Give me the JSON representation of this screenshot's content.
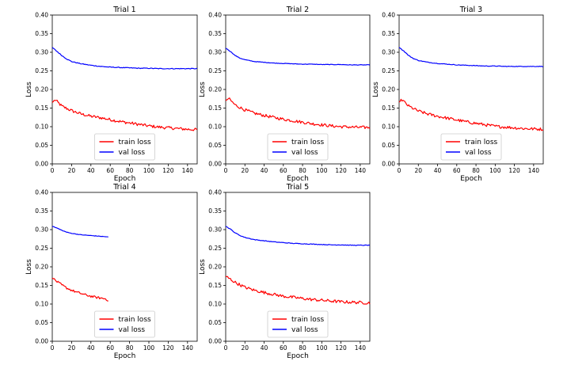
{
  "chart_data": [
    {
      "type": "line",
      "title": "Trial 1",
      "xlabel": "Epoch",
      "ylabel": "Loss",
      "xlim": [
        0,
        150
      ],
      "ylim": [
        0,
        0.4
      ],
      "xticks": [
        0,
        20,
        40,
        60,
        80,
        100,
        120,
        140
      ],
      "yticks": [
        "0.00",
        "0.05",
        "0.10",
        "0.15",
        "0.20",
        "0.25",
        "0.30",
        "0.35",
        "0.40"
      ],
      "legend": {
        "placement": "bottom-center",
        "entries": [
          "train loss",
          "val loss"
        ]
      },
      "series": [
        {
          "name": "train loss",
          "color": "#ff0000",
          "noise": 0.004,
          "x": [
            0,
            3,
            10,
            20,
            30,
            40,
            50,
            60,
            70,
            80,
            90,
            100,
            110,
            120,
            130,
            140,
            150
          ],
          "y": [
            0.165,
            0.172,
            0.155,
            0.143,
            0.134,
            0.128,
            0.124,
            0.119,
            0.114,
            0.11,
            0.106,
            0.102,
            0.099,
            0.097,
            0.095,
            0.093,
            0.092
          ]
        },
        {
          "name": "val loss",
          "color": "#0000ff",
          "noise": 0.001,
          "x": [
            0,
            5,
            10,
            15,
            20,
            30,
            40,
            50,
            60,
            70,
            80,
            90,
            100,
            110,
            120,
            130,
            140,
            150
          ],
          "y": [
            0.313,
            0.302,
            0.291,
            0.282,
            0.275,
            0.269,
            0.265,
            0.262,
            0.26,
            0.259,
            0.258,
            0.257,
            0.257,
            0.256,
            0.256,
            0.256,
            0.256,
            0.256
          ]
        }
      ]
    },
    {
      "type": "line",
      "title": "Trial 2",
      "xlabel": "Epoch",
      "ylabel": "Loss",
      "xlim": [
        0,
        150
      ],
      "ylim": [
        0,
        0.4
      ],
      "xticks": [
        0,
        20,
        40,
        60,
        80,
        100,
        120,
        140
      ],
      "yticks": [
        "0.00",
        "0.05",
        "0.10",
        "0.15",
        "0.20",
        "0.25",
        "0.30",
        "0.35",
        "0.40"
      ],
      "legend": {
        "placement": "bottom-center",
        "entries": [
          "train loss",
          "val loss"
        ]
      },
      "series": [
        {
          "name": "train loss",
          "color": "#ff0000",
          "noise": 0.004,
          "x": [
            0,
            3,
            10,
            20,
            30,
            40,
            50,
            60,
            70,
            80,
            90,
            100,
            110,
            120,
            130,
            140,
            150
          ],
          "y": [
            0.17,
            0.176,
            0.158,
            0.145,
            0.136,
            0.13,
            0.125,
            0.12,
            0.116,
            0.112,
            0.108,
            0.105,
            0.102,
            0.1,
            0.099,
            0.098,
            0.098
          ]
        },
        {
          "name": "val loss",
          "color": "#0000ff",
          "noise": 0.0007,
          "x": [
            0,
            5,
            10,
            15,
            20,
            30,
            40,
            50,
            60,
            70,
            80,
            90,
            100,
            110,
            120,
            130,
            140,
            150
          ],
          "y": [
            0.311,
            0.302,
            0.291,
            0.284,
            0.28,
            0.275,
            0.273,
            0.271,
            0.27,
            0.269,
            0.268,
            0.268,
            0.267,
            0.267,
            0.267,
            0.266,
            0.266,
            0.266
          ]
        }
      ]
    },
    {
      "type": "line",
      "title": "Trial 3",
      "xlabel": "Epoch",
      "ylabel": "Loss",
      "xlim": [
        0,
        150
      ],
      "ylim": [
        0,
        0.4
      ],
      "xticks": [
        0,
        20,
        40,
        60,
        80,
        100,
        120,
        140
      ],
      "yticks": [
        "0.00",
        "0.05",
        "0.10",
        "0.15",
        "0.20",
        "0.25",
        "0.30",
        "0.35",
        "0.40"
      ],
      "legend": {
        "placement": "bottom-center",
        "entries": [
          "train loss",
          "val loss"
        ]
      },
      "series": [
        {
          "name": "train loss",
          "color": "#ff0000",
          "noise": 0.004,
          "x": [
            0,
            3,
            10,
            20,
            30,
            40,
            50,
            60,
            70,
            80,
            90,
            100,
            110,
            120,
            130,
            140,
            150
          ],
          "y": [
            0.166,
            0.172,
            0.155,
            0.142,
            0.134,
            0.128,
            0.123,
            0.118,
            0.113,
            0.109,
            0.105,
            0.101,
            0.099,
            0.097,
            0.095,
            0.094,
            0.093
          ]
        },
        {
          "name": "val loss",
          "color": "#0000ff",
          "noise": 0.0008,
          "x": [
            0,
            5,
            10,
            15,
            20,
            30,
            40,
            50,
            60,
            70,
            80,
            90,
            100,
            110,
            120,
            130,
            140,
            150
          ],
          "y": [
            0.313,
            0.303,
            0.291,
            0.283,
            0.278,
            0.273,
            0.27,
            0.268,
            0.266,
            0.265,
            0.264,
            0.263,
            0.263,
            0.262,
            0.262,
            0.262,
            0.262,
            0.262
          ]
        }
      ]
    },
    {
      "type": "line",
      "title": "Trial 4",
      "xlabel": "Epoch",
      "ylabel": "Loss",
      "xlim": [
        0,
        150
      ],
      "ylim": [
        0,
        0.4
      ],
      "xticks": [
        0,
        20,
        40,
        60,
        80,
        100,
        120,
        140
      ],
      "yticks": [
        "0.00",
        "0.05",
        "0.10",
        "0.15",
        "0.20",
        "0.25",
        "0.30",
        "0.35",
        "0.40"
      ],
      "legend": {
        "placement": "bottom-center",
        "entries": [
          "train loss",
          "val loss"
        ]
      },
      "series": [
        {
          "name": "train loss",
          "color": "#ff0000",
          "noise": 0.003,
          "x": [
            0,
            5,
            10,
            15,
            20,
            25,
            30,
            35,
            40,
            45,
            50,
            55,
            58
          ],
          "y": [
            0.17,
            0.16,
            0.151,
            0.143,
            0.137,
            0.132,
            0.128,
            0.124,
            0.121,
            0.118,
            0.116,
            0.114,
            0.11
          ]
        },
        {
          "name": "val loss",
          "color": "#0000ff",
          "noise": 0.0006,
          "x": [
            0,
            5,
            10,
            15,
            20,
            25,
            30,
            35,
            40,
            45,
            50,
            55,
            58
          ],
          "y": [
            0.309,
            0.304,
            0.298,
            0.293,
            0.29,
            0.288,
            0.286,
            0.285,
            0.284,
            0.283,
            0.282,
            0.281,
            0.28
          ]
        }
      ]
    },
    {
      "type": "line",
      "title": "Trial 5",
      "xlabel": "Epoch",
      "ylabel": "Loss",
      "xlim": [
        0,
        150
      ],
      "ylim": [
        0,
        0.4
      ],
      "xticks": [
        0,
        20,
        40,
        60,
        80,
        100,
        120,
        140
      ],
      "yticks": [
        "0.00",
        "0.05",
        "0.10",
        "0.15",
        "0.20",
        "0.25",
        "0.30",
        "0.35",
        "0.40"
      ],
      "legend": {
        "placement": "bottom-center",
        "entries": [
          "train loss",
          "val loss"
        ]
      },
      "series": [
        {
          "name": "train loss",
          "color": "#ff0000",
          "noise": 0.004,
          "x": [
            0,
            10,
            20,
            30,
            40,
            50,
            60,
            70,
            80,
            90,
            100,
            110,
            120,
            130,
            140,
            150
          ],
          "y": [
            0.175,
            0.158,
            0.145,
            0.137,
            0.131,
            0.126,
            0.121,
            0.118,
            0.115,
            0.112,
            0.11,
            0.108,
            0.106,
            0.105,
            0.104,
            0.103
          ]
        },
        {
          "name": "val loss",
          "color": "#0000ff",
          "noise": 0.0008,
          "x": [
            0,
            5,
            10,
            15,
            20,
            30,
            40,
            50,
            60,
            70,
            80,
            90,
            100,
            110,
            120,
            130,
            140,
            150
          ],
          "y": [
            0.309,
            0.301,
            0.291,
            0.284,
            0.279,
            0.273,
            0.27,
            0.267,
            0.265,
            0.263,
            0.262,
            0.261,
            0.26,
            0.259,
            0.259,
            0.258,
            0.258,
            0.258
          ]
        }
      ]
    }
  ]
}
